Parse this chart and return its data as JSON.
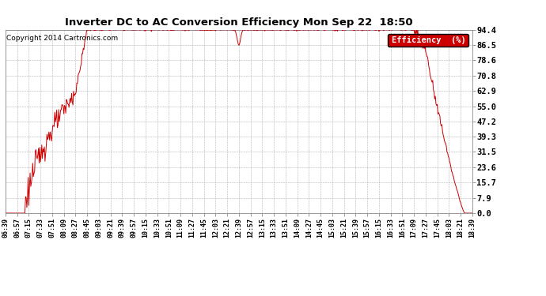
{
  "title": "Inverter DC to AC Conversion Efficiency Mon Sep 22  18:50",
  "copyright": "Copyright 2014 Cartronics.com",
  "legend_label": "Efficiency  (%)",
  "legend_bg": "#cc0000",
  "legend_fg": "#ffffff",
  "line_color": "#cc0000",
  "bg_color": "#ffffff",
  "plot_bg": "#ffffff",
  "grid_color": "#aaaaaa",
  "yticks": [
    0.0,
    7.9,
    15.7,
    23.6,
    31.5,
    39.3,
    47.2,
    55.0,
    62.9,
    70.8,
    78.6,
    86.5,
    94.4
  ],
  "ytick_labels": [
    "0.0",
    "7.9",
    "15.7",
    "23.6",
    "31.5",
    "39.3",
    "47.2",
    "55.0",
    "62.9",
    "70.8",
    "78.6",
    "86.5",
    "94.4"
  ],
  "ymax": 94.4,
  "ymin": 0.0,
  "xtick_labels": [
    "06:39",
    "06:57",
    "07:15",
    "07:33",
    "07:51",
    "08:09",
    "08:27",
    "08:45",
    "09:03",
    "09:21",
    "09:39",
    "09:57",
    "10:15",
    "10:33",
    "10:51",
    "11:09",
    "11:27",
    "11:45",
    "12:03",
    "12:21",
    "12:39",
    "12:57",
    "13:15",
    "13:33",
    "13:51",
    "14:09",
    "14:27",
    "14:45",
    "15:03",
    "15:21",
    "15:39",
    "15:57",
    "16:15",
    "16:33",
    "16:51",
    "17:09",
    "17:27",
    "17:45",
    "18:03",
    "18:21",
    "18:39"
  ],
  "start_time": "06:39",
  "end_time": "18:39"
}
